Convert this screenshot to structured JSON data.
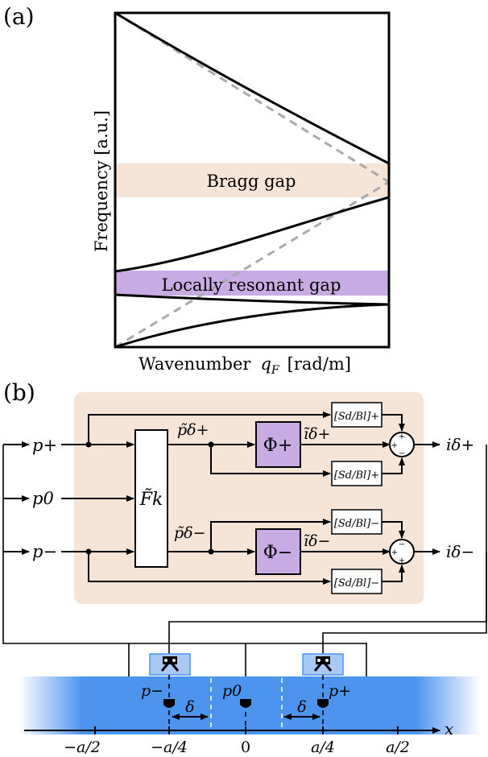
{
  "panel_a": {
    "label": "(a)",
    "ylabel": "Frequency [a.u.]",
    "xlabel_prefix": "Wavenumber",
    "xlabel_var": "q",
    "xlabel_sub": "F",
    "xlabel_unit": "[rad/m]",
    "bragg_label": "Bragg gap",
    "lr_label": "Locally resonant gap",
    "colors": {
      "bragg_band": "#f6e4d6",
      "lr_band": "#c9abe3",
      "dashed": "#aaaaaa"
    }
  },
  "panel_b": {
    "label": "(b)",
    "inputs": [
      "p+",
      "p0",
      "p−"
    ],
    "transfer_block": "F̃k",
    "phi_plus": "Φ+",
    "phi_minus": "Φ−",
    "p_tilde_plus": "p̃δ+",
    "p_tilde_minus": "p̃δ−",
    "i_tilde_plus": "ĩδ+",
    "i_tilde_minus": "ĩδ−",
    "sd_bl_plus": "[Sd/Bl]+",
    "sd_bl_minus": "[Sd/Bl]−",
    "out_plus": "iδ+",
    "out_minus": "iδ−",
    "sum_plus_signs": "+ + −",
    "sum_minus_signs": "− + +",
    "colors": {
      "controller_bg": "#f6e4d6",
      "phi_block": "#c9abe3",
      "duct": "#4d94ee",
      "speaker": "#a9c9f5"
    }
  },
  "duct": {
    "mic_left": "p−",
    "mic_mid": "p0",
    "mic_right": "p+",
    "delta": "δ",
    "axis_var": "x",
    "ticks": [
      "−a/2",
      "−a/4",
      "0",
      "a/4",
      "a/2"
    ]
  }
}
